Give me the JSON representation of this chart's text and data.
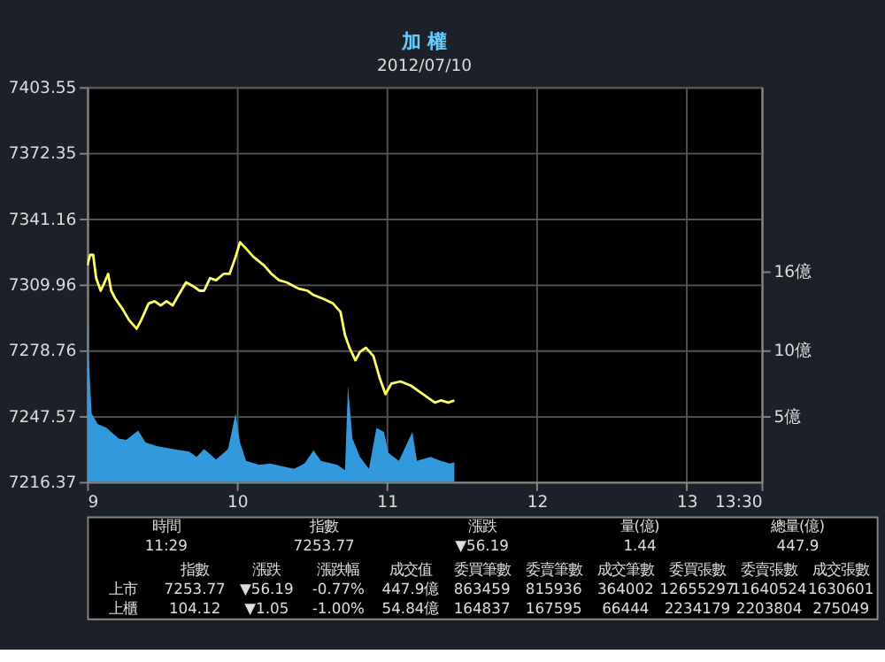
{
  "chart_data": {
    "type": "line",
    "title": "加 權",
    "subtitle": "2012/07/10",
    "xlim": [
      9,
      13.5
    ],
    "xticks": [
      9,
      10,
      11,
      12,
      13,
      {
        "value": 13.5,
        "label": "13:30"
      }
    ],
    "ylim": [
      7216.37,
      7403.55
    ],
    "yticks": [
      7216.37,
      7247.57,
      7278.76,
      7309.96,
      7341.16,
      7372.35,
      7403.55
    ],
    "y2lim": [
      0,
      30
    ],
    "y2ticks": [
      {
        "value": 5,
        "label": "5億"
      },
      {
        "value": 10,
        "label": "10億"
      },
      {
        "value": 16,
        "label": "16億"
      }
    ],
    "grid": true,
    "series": [
      {
        "type": "area",
        "axis": "y2",
        "color": "#3399dd",
        "x": [
          9.0,
          9.03,
          9.07,
          9.13,
          9.16,
          9.21,
          9.26,
          9.34,
          9.39,
          9.47,
          9.57,
          9.68,
          9.73,
          9.78,
          9.86,
          9.94,
          9.99,
          10.02,
          10.06,
          10.15,
          10.22,
          10.3,
          10.38,
          10.45,
          10.51,
          10.56,
          10.67,
          10.72,
          10.74,
          10.77,
          10.82,
          10.88,
          10.93,
          10.98,
          11.01,
          11.08,
          11.17,
          11.2,
          11.29,
          11.36,
          11.42,
          11.45
        ],
        "values": [
          11.7,
          5.2,
          4.4,
          4.1,
          3.8,
          3.3,
          3.2,
          3.9,
          3.0,
          2.7,
          2.5,
          2.3,
          1.9,
          2.5,
          1.7,
          2.5,
          5.2,
          3.0,
          1.6,
          1.3,
          1.4,
          1.2,
          1.0,
          1.4,
          2.4,
          1.6,
          1.3,
          0.9,
          7.3,
          3.3,
          1.9,
          1.0,
          4.1,
          3.8,
          2.2,
          1.6,
          3.8,
          1.6,
          1.9,
          1.6,
          1.4,
          1.5
        ]
      },
      {
        "color": "#ffff66",
        "x": [
          9.0,
          9.02,
          9.04,
          9.06,
          9.09,
          9.11,
          9.14,
          9.16,
          9.19,
          9.23,
          9.28,
          9.33,
          9.36,
          9.41,
          9.45,
          9.49,
          9.53,
          9.57,
          9.61,
          9.66,
          9.71,
          9.75,
          9.78,
          9.82,
          9.86,
          9.91,
          9.95,
          9.99,
          10.02,
          10.06,
          10.11,
          10.18,
          10.23,
          10.28,
          10.33,
          10.41,
          10.47,
          10.51,
          10.58,
          10.64,
          10.69,
          10.72,
          10.75,
          10.79,
          10.82,
          10.86,
          10.91,
          10.95,
          10.99,
          11.03,
          11.09,
          11.16,
          11.22,
          11.28,
          11.32,
          11.36,
          11.41,
          11.45
        ],
        "values": [
          7319,
          7324,
          7324,
          7313,
          7307,
          7310,
          7315,
          7307,
          7303,
          7299,
          7293,
          7289,
          7293,
          7301,
          7302,
          7300,
          7302,
          7300,
          7305,
          7311,
          7309,
          7307,
          7307,
          7313,
          7312,
          7315,
          7315,
          7323,
          7330,
          7327,
          7323,
          7319,
          7315,
          7312,
          7311,
          7308,
          7307,
          7305,
          7303,
          7301,
          7297,
          7286,
          7280,
          7274,
          7278,
          7280,
          7276,
          7266,
          7258,
          7263,
          7264,
          7262,
          7259,
          7256,
          7254,
          7255,
          7254,
          7255
        ]
      }
    ],
    "annotations": [
      "時間",
      "指數",
      "漲跌",
      "量(億)",
      "總量(億)",
      "11:29",
      "7253.77",
      "▼56.19",
      "1.44",
      "447.9",
      "指數",
      "漲跌",
      "漲跌幅",
      "成交值",
      "委買筆數",
      "委賣筆數",
      "成交筆數",
      "委買張數",
      "委賣張數",
      "成交張數",
      "上市",
      "7253.77",
      "▼56.19",
      "-0.77%",
      "447.9億",
      "863459",
      "815936",
      "364002",
      "12655297",
      "11640524",
      "1630601",
      "上櫃",
      "104.12",
      "▼1.05",
      "-1.00%",
      "54.84億",
      "164837",
      "167595",
      "66444",
      "2234179",
      "2203804",
      "275049"
    ]
  }
}
